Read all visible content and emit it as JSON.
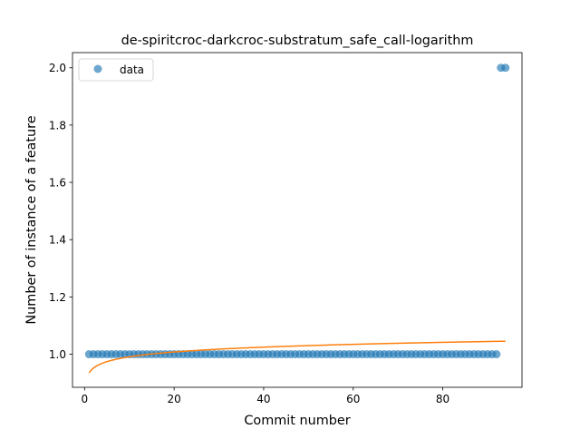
{
  "chart_data": {
    "type": "scatter",
    "title": "de-spiritcroc-darkcroc-substratum_safe_call-logarithm",
    "xlabel": "Commit number",
    "ylabel": "Number of instance of a feature",
    "xlim": [
      -2.7,
      97.7
    ],
    "ylim": [
      0.8845,
      2.053
    ],
    "x_ticks": [
      0,
      20,
      40,
      60,
      80
    ],
    "x_tick_labels": [
      "0",
      "20",
      "40",
      "60",
      "80"
    ],
    "y_ticks": [
      1.0,
      1.2,
      1.4,
      1.6,
      1.8,
      2.0
    ],
    "y_tick_labels": [
      "1.0",
      "1.2",
      "1.4",
      "1.6",
      "1.8",
      "2.0"
    ],
    "grid": false,
    "legend": {
      "position": "top-left",
      "entries": [
        {
          "label": "data",
          "marker": "circle",
          "color": "#1f77b4"
        }
      ]
    },
    "series": [
      {
        "name": "data",
        "kind": "scatter",
        "color": "#1f77b4",
        "alpha": 0.65,
        "points": [
          [
            1,
            1
          ],
          [
            2,
            1
          ],
          [
            3,
            1
          ],
          [
            4,
            1
          ],
          [
            5,
            1
          ],
          [
            6,
            1
          ],
          [
            7,
            1
          ],
          [
            8,
            1
          ],
          [
            9,
            1
          ],
          [
            10,
            1
          ],
          [
            11,
            1
          ],
          [
            12,
            1
          ],
          [
            13,
            1
          ],
          [
            14,
            1
          ],
          [
            15,
            1
          ],
          [
            16,
            1
          ],
          [
            17,
            1
          ],
          [
            18,
            1
          ],
          [
            19,
            1
          ],
          [
            20,
            1
          ],
          [
            21,
            1
          ],
          [
            22,
            1
          ],
          [
            23,
            1
          ],
          [
            24,
            1
          ],
          [
            25,
            1
          ],
          [
            26,
            1
          ],
          [
            27,
            1
          ],
          [
            28,
            1
          ],
          [
            29,
            1
          ],
          [
            30,
            1
          ],
          [
            31,
            1
          ],
          [
            32,
            1
          ],
          [
            33,
            1
          ],
          [
            34,
            1
          ],
          [
            35,
            1
          ],
          [
            36,
            1
          ],
          [
            37,
            1
          ],
          [
            38,
            1
          ],
          [
            39,
            1
          ],
          [
            40,
            1
          ],
          [
            41,
            1
          ],
          [
            42,
            1
          ],
          [
            43,
            1
          ],
          [
            44,
            1
          ],
          [
            45,
            1
          ],
          [
            46,
            1
          ],
          [
            47,
            1
          ],
          [
            48,
            1
          ],
          [
            49,
            1
          ],
          [
            50,
            1
          ],
          [
            51,
            1
          ],
          [
            52,
            1
          ],
          [
            53,
            1
          ],
          [
            54,
            1
          ],
          [
            55,
            1
          ],
          [
            56,
            1
          ],
          [
            57,
            1
          ],
          [
            58,
            1
          ],
          [
            59,
            1
          ],
          [
            60,
            1
          ],
          [
            61,
            1
          ],
          [
            62,
            1
          ],
          [
            63,
            1
          ],
          [
            64,
            1
          ],
          [
            65,
            1
          ],
          [
            66,
            1
          ],
          [
            67,
            1
          ],
          [
            68,
            1
          ],
          [
            69,
            1
          ],
          [
            70,
            1
          ],
          [
            71,
            1
          ],
          [
            72,
            1
          ],
          [
            73,
            1
          ],
          [
            74,
            1
          ],
          [
            75,
            1
          ],
          [
            76,
            1
          ],
          [
            77,
            1
          ],
          [
            78,
            1
          ],
          [
            79,
            1
          ],
          [
            80,
            1
          ],
          [
            81,
            1
          ],
          [
            82,
            1
          ],
          [
            83,
            1
          ],
          [
            84,
            1
          ],
          [
            85,
            1
          ],
          [
            86,
            1
          ],
          [
            87,
            1
          ],
          [
            88,
            1
          ],
          [
            89,
            1
          ],
          [
            90,
            1
          ],
          [
            91,
            1
          ],
          [
            92,
            1
          ],
          [
            93,
            2
          ],
          [
            94,
            2
          ]
        ]
      },
      {
        "kind": "line",
        "color": "#ff7f0e",
        "fit": "logarithmic",
        "curve": {
          "a": 0.935,
          "b": 0.0243,
          "x_start": 1,
          "x_end": 94
        }
      }
    ]
  }
}
